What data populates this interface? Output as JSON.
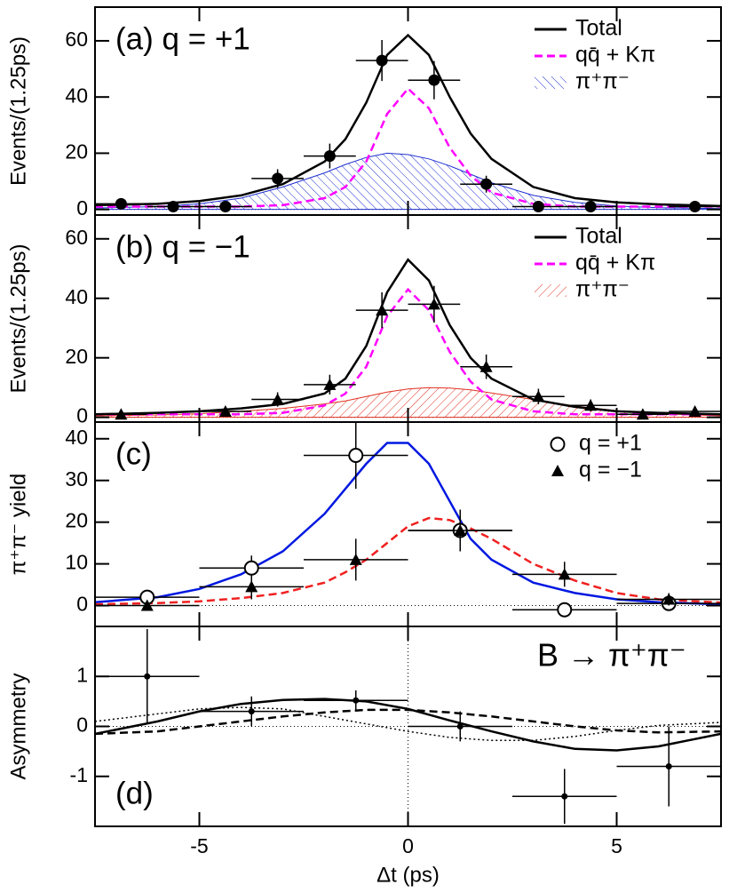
{
  "chart_data": [
    {
      "type": "line",
      "title": "(a) q = +1",
      "ylabel": "Events/(1.25ps)",
      "ylim": [
        -2,
        72
      ],
      "yticks": [
        0,
        20,
        40,
        60
      ],
      "x": [
        -7.5,
        -6,
        -5,
        -4,
        -3,
        -2,
        -1.5,
        -1,
        -0.5,
        0,
        0.5,
        1,
        1.5,
        2,
        3,
        4,
        5,
        6,
        7.5
      ],
      "series": [
        {
          "name": "π⁺π⁻",
          "color": "#2030d0",
          "style": "hatch",
          "hatch": "\\",
          "values": [
            0.5,
            1,
            2,
            4,
            8,
            13,
            16,
            18.5,
            20,
            19.5,
            18,
            15.5,
            12.5,
            9.5,
            5,
            2.5,
            1.2,
            0.6,
            0.3
          ]
        },
        {
          "name": "qq̄ + Kπ",
          "color": "#ff00ff",
          "style": "dashed",
          "values": [
            1,
            1,
            1,
            1,
            1.5,
            4,
            8,
            17,
            34,
            43,
            36,
            22,
            12,
            6,
            2,
            1,
            1,
            1,
            1
          ]
        },
        {
          "name": "Total",
          "color": "#000000",
          "style": "solid",
          "values": [
            1.5,
            2,
            3,
            5,
            9,
            17,
            25,
            38,
            55,
            62,
            55,
            40,
            27,
            18,
            8,
            4,
            2.5,
            1.8,
            1.2
          ]
        }
      ],
      "points": [
        {
          "marker": "circle",
          "xerr": 0.625,
          "x": [
            -6.875,
            -5.625,
            -4.375,
            -3.125,
            -1.875,
            -0.625,
            0.625,
            1.875,
            3.125,
            4.375,
            6.875
          ],
          "values": [
            2,
            1,
            1,
            11,
            19,
            53,
            46,
            9,
            1,
            1,
            1
          ],
          "errors": [
            1.4,
            1,
            1,
            3.3,
            4.4,
            7.3,
            6.8,
            3,
            1,
            1,
            1
          ]
        }
      ]
    },
    {
      "type": "line",
      "title": "(b) q = −1",
      "ylabel": "Events/(1.25ps)",
      "ylim": [
        -1.6,
        68
      ],
      "yticks": [
        0,
        20,
        40,
        60
      ],
      "x": [
        -7.5,
        -6,
        -5,
        -4,
        -3,
        -2,
        -1.5,
        -1,
        -0.5,
        0,
        0.5,
        1,
        1.5,
        2,
        3,
        4,
        5,
        6,
        7.5
      ],
      "series": [
        {
          "name": "π⁺π⁻",
          "color": "#e03020",
          "style": "hatch",
          "hatch": "/",
          "values": [
            0.5,
            0.8,
            1.2,
            2,
            3,
            4.5,
            5.5,
            7,
            8.5,
            9.5,
            10,
            9.8,
            9.2,
            8.2,
            6,
            3.8,
            2.2,
            1.2,
            0.5
          ]
        },
        {
          "name": "qq̄ + Kπ",
          "color": "#ff00ff",
          "style": "dashed",
          "values": [
            1,
            1,
            1,
            1,
            1.5,
            4,
            8,
            17,
            34,
            43,
            36,
            22,
            12,
            6,
            2,
            1,
            1,
            1,
            1
          ]
        },
        {
          "name": "Total",
          "color": "#000000",
          "style": "solid",
          "values": [
            1,
            1.5,
            2,
            3,
            4.5,
            8,
            13,
            24,
            42,
            53,
            46,
            31,
            20,
            13,
            6,
            3.5,
            2,
            1.5,
            1
          ]
        }
      ],
      "points": [
        {
          "marker": "triangle",
          "xerr": 0.625,
          "x": [
            -6.875,
            -4.375,
            -3.125,
            -1.875,
            -0.625,
            0.625,
            1.875,
            3.125,
            4.375,
            5.625,
            6.875
          ],
          "values": [
            1,
            2,
            6,
            11,
            36,
            38,
            17,
            7,
            4,
            1,
            2
          ],
          "errors": [
            1,
            1.4,
            2.4,
            3.3,
            6,
            6.2,
            4.1,
            2.6,
            2,
            1,
            1.4
          ]
        }
      ]
    },
    {
      "type": "line",
      "title": "(c)",
      "ylabel": "π⁺π⁻ yield",
      "ylim": [
        -5,
        44
      ],
      "yticks": [
        0,
        10,
        20,
        30,
        40
      ],
      "x": [
        -7.5,
        -6,
        -5,
        -4,
        -3,
        -2,
        -1.5,
        -1,
        -0.5,
        0,
        0.5,
        1,
        1.5,
        2,
        3,
        4,
        5,
        6,
        7.5
      ],
      "series": [
        {
          "color": "#0018e0",
          "style": "solid",
          "values": [
            0.8,
            2,
            4,
            7.5,
            13,
            22,
            28,
            34,
            39,
            39,
            34,
            25,
            16,
            11,
            5.5,
            3,
            1.5,
            0.8,
            0.3
          ]
        },
        {
          "color": "#f02020",
          "style": "dashed",
          "values": [
            0.3,
            0.6,
            1,
            1.8,
            3,
            5.5,
            8,
            11,
            15,
            19,
            21,
            20.5,
            18.5,
            16,
            10,
            6,
            3,
            1.5,
            0.7
          ]
        }
      ],
      "points": [
        {
          "name": "q = +1",
          "marker": "open-circle",
          "xerr": 1.25,
          "x": [
            -6.25,
            -3.75,
            -1.25,
            1.25,
            3.75,
            6.25
          ],
          "values": [
            2,
            9,
            36,
            18,
            -1,
            0.5
          ],
          "errors": [
            1.5,
            3,
            8,
            5,
            1.5,
            1
          ]
        },
        {
          "name": "q = −1",
          "marker": "triangle",
          "xerr": 1.25,
          "x": [
            -6.25,
            -3.75,
            -1.25,
            1.25,
            3.75,
            6.25
          ],
          "values": [
            0,
            4.5,
            11,
            18,
            7.5,
            1.5
          ],
          "errors": [
            1,
            3,
            5,
            5,
            3,
            1.5
          ]
        }
      ]
    },
    {
      "type": "line",
      "title": "(d)",
      "ylabel": "Asymmetry",
      "annotation": "B → π⁺π⁻",
      "ylim": [
        -2,
        2
      ],
      "yticks": [
        -1,
        0,
        1
      ],
      "xlim": [
        -7.5,
        7.5
      ],
      "xticks": [
        -5,
        0,
        5
      ],
      "xlabel": "Δt (ps)",
      "vline": 0,
      "x": [
        -7.5,
        -6,
        -5,
        -4,
        -3,
        -2,
        -1,
        0,
        1,
        2,
        3,
        4,
        5,
        6,
        7.5
      ],
      "series": [
        {
          "color": "#000000",
          "style": "dotted",
          "values": [
            0.1,
            0.25,
            0.35,
            0.38,
            0.35,
            0.2,
            0.05,
            -0.1,
            -0.22,
            -0.28,
            -0.28,
            -0.2,
            -0.08,
            0.02,
            0.08
          ]
        },
        {
          "color": "#000000",
          "style": "dashed",
          "values": [
            -0.15,
            -0.1,
            0,
            0.1,
            0.2,
            0.28,
            0.33,
            0.33,
            0.28,
            0.2,
            0.1,
            0,
            -0.08,
            -0.12,
            -0.1
          ]
        },
        {
          "color": "#000000",
          "style": "solid",
          "values": [
            -0.15,
            0.1,
            0.3,
            0.45,
            0.53,
            0.55,
            0.5,
            0.35,
            0.12,
            -0.1,
            -0.3,
            -0.45,
            -0.48,
            -0.4,
            -0.15
          ]
        }
      ],
      "points": [
        {
          "marker": "dot",
          "xerr": 1.25,
          "x": [
            -6.25,
            -3.75,
            -1.25,
            1.25,
            3.75,
            6.25
          ],
          "values": [
            1,
            0.3,
            0.52,
            0,
            -1.4,
            -0.8
          ],
          "errors": [
            0.95,
            0.3,
            0.2,
            0.3,
            0.55,
            0.8
          ]
        }
      ]
    }
  ]
}
